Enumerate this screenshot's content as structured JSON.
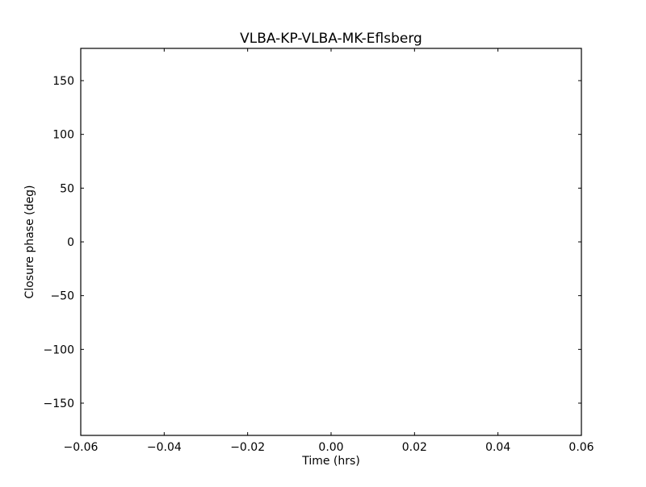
{
  "chart_data": {
    "type": "scatter",
    "title": "VLBA-KP-VLBA-MK-Eflsberg",
    "xlabel": "Time (hrs)",
    "ylabel": "Closure phase (deg)",
    "xlim": [
      -0.06,
      0.06
    ],
    "ylim": [
      -180,
      180
    ],
    "xticks": [
      -0.06,
      -0.04,
      -0.02,
      0.0,
      0.02,
      0.04,
      0.06
    ],
    "xtick_labels": [
      "−0.06",
      "−0.04",
      "−0.02",
      "0.00",
      "0.02",
      "0.04",
      "0.06"
    ],
    "yticks": [
      -150,
      -100,
      -50,
      0,
      50,
      100,
      150
    ],
    "ytick_labels": [
      "−150",
      "−100",
      "−50",
      "0",
      "50",
      "100",
      "150"
    ],
    "grid": false,
    "series": [
      {
        "x": [],
        "y": []
      }
    ]
  }
}
